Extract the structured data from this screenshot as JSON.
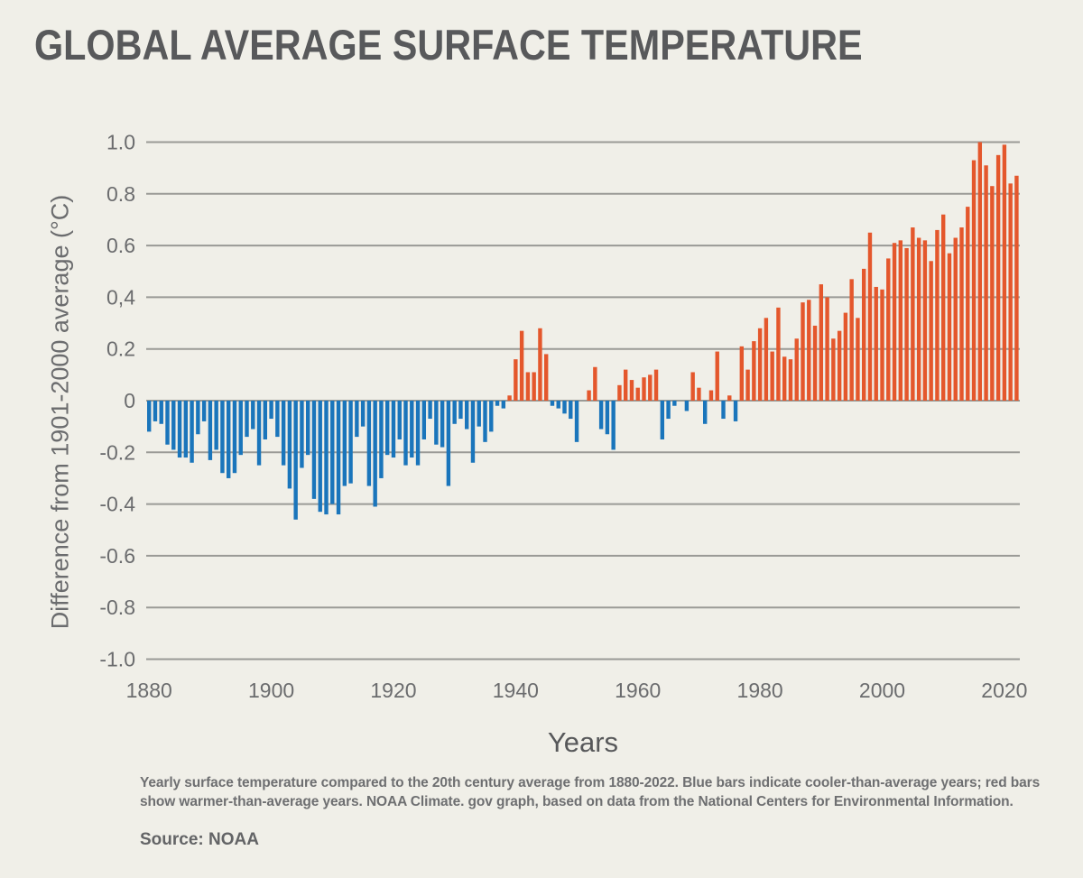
{
  "header": {
    "title": "GLOBAL AVERAGE SURFACE TEMPERATURE"
  },
  "footer": {
    "caption": "Yearly surface temperature compared to the 20th century average from 1880-2022. Blue bars indicate cooler-than-average years; red bars show warmer-than-average years. NOAA Climate. gov graph, based on data from the National Centers for Environmental Information.",
    "source": "Source: NOAA"
  },
  "chart_data": {
    "type": "bar",
    "title": "GLOBAL AVERAGE SURFACE TEMPERATURE",
    "xlabel": "Years",
    "ylabel": "Difference from 1901-2000 average (°C)",
    "ylim": [
      -1.0,
      1.0
    ],
    "grid": true,
    "legend": null,
    "colors": {
      "warmer_than_average": "#e4572c",
      "cooler_than_average": "#1a75bb",
      "gridline": "#9a9a96",
      "tick_text": "#6b6c6e",
      "background": "#f0efe8"
    },
    "yticks": [
      {
        "label": "1.0",
        "value": 1.0
      },
      {
        "label": "0.8",
        "value": 0.8
      },
      {
        "label": "0.6",
        "value": 0.6
      },
      {
        "label": "0,4",
        "value": 0.4
      },
      {
        "label": "0.2",
        "value": 0.2
      },
      {
        "label": "0",
        "value": 0.0
      },
      {
        "label": "-0.2",
        "value": -0.2
      },
      {
        "label": "-0.4",
        "value": -0.4
      },
      {
        "label": "-0.6",
        "value": -0.6
      },
      {
        "label": "-0.8",
        "value": -0.8
      },
      {
        "label": "-1.0",
        "value": -1.0
      }
    ],
    "xticks": [
      1880,
      1900,
      1920,
      1940,
      1960,
      1980,
      2000,
      2020
    ],
    "year_start": 1880,
    "year_end": 2022,
    "values": [
      -0.12,
      -0.08,
      -0.09,
      -0.17,
      -0.19,
      -0.22,
      -0.22,
      -0.24,
      -0.13,
      -0.08,
      -0.23,
      -0.19,
      -0.28,
      -0.3,
      -0.28,
      -0.21,
      -0.14,
      -0.11,
      -0.25,
      -0.15,
      -0.07,
      -0.14,
      -0.25,
      -0.34,
      -0.46,
      -0.26,
      -0.21,
      -0.38,
      -0.43,
      -0.44,
      -0.4,
      -0.44,
      -0.33,
      -0.32,
      -0.14,
      -0.1,
      -0.33,
      -0.41,
      -0.3,
      -0.21,
      -0.22,
      -0.15,
      -0.25,
      -0.22,
      -0.25,
      -0.15,
      -0.07,
      -0.17,
      -0.18,
      -0.33,
      -0.09,
      -0.07,
      -0.11,
      -0.24,
      -0.1,
      -0.16,
      -0.12,
      -0.02,
      -0.03,
      0.02,
      0.16,
      0.27,
      0.11,
      0.11,
      0.28,
      0.18,
      -0.02,
      -0.03,
      -0.05,
      -0.07,
      -0.16,
      0.0,
      0.04,
      0.13,
      -0.11,
      -0.13,
      -0.19,
      0.06,
      0.12,
      0.08,
      0.05,
      0.09,
      0.1,
      0.12,
      -0.15,
      -0.07,
      -0.02,
      0.0,
      -0.04,
      0.11,
      0.05,
      -0.09,
      0.04,
      0.19,
      -0.07,
      0.02,
      -0.08,
      0.21,
      0.12,
      0.23,
      0.28,
      0.32,
      0.19,
      0.36,
      0.17,
      0.16,
      0.24,
      0.38,
      0.39,
      0.29,
      0.45,
      0.4,
      0.24,
      0.27,
      0.34,
      0.47,
      0.32,
      0.51,
      0.65,
      0.44,
      0.43,
      0.55,
      0.61,
      0.62,
      0.59,
      0.67,
      0.63,
      0.62,
      0.54,
      0.66,
      0.72,
      0.57,
      0.63,
      0.67,
      0.75,
      0.93,
      1.0,
      0.91,
      0.83,
      0.95,
      0.99,
      0.84,
      0.87
    ]
  }
}
